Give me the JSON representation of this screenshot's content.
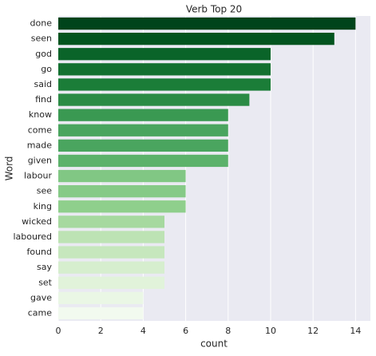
{
  "chart_data": {
    "type": "barh",
    "title": "Verb Top 20",
    "xlabel": "count",
    "ylabel": "Word",
    "categories": [
      "done",
      "seen",
      "god",
      "go",
      "said",
      "find",
      "know",
      "come",
      "made",
      "given",
      "labour",
      "see",
      "king",
      "wicked",
      "laboured",
      "found",
      "say",
      "set",
      "gave",
      "came"
    ],
    "values": [
      14,
      13,
      10,
      10,
      10,
      9,
      8,
      8,
      8,
      8,
      6,
      6,
      6,
      5,
      5,
      5,
      5,
      5,
      4,
      4
    ],
    "colors": [
      "#00441b",
      "#03541f",
      "#0a6429",
      "#137030",
      "#1b7d38",
      "#2b8b45",
      "#3a9952",
      "#4aa55f",
      "#4aa55f",
      "#5cb26b",
      "#81c784",
      "#86ca87",
      "#8fcf8c",
      "#a6d99f",
      "#bde3b4",
      "#c6e7bd",
      "#d6eece",
      "#e1f3da",
      "#eaf7e5",
      "#f2faef"
    ],
    "xlim": [
      0,
      14.7
    ],
    "xticks": [
      0,
      2,
      4,
      6,
      8,
      10,
      12,
      14
    ],
    "grid": true
  }
}
